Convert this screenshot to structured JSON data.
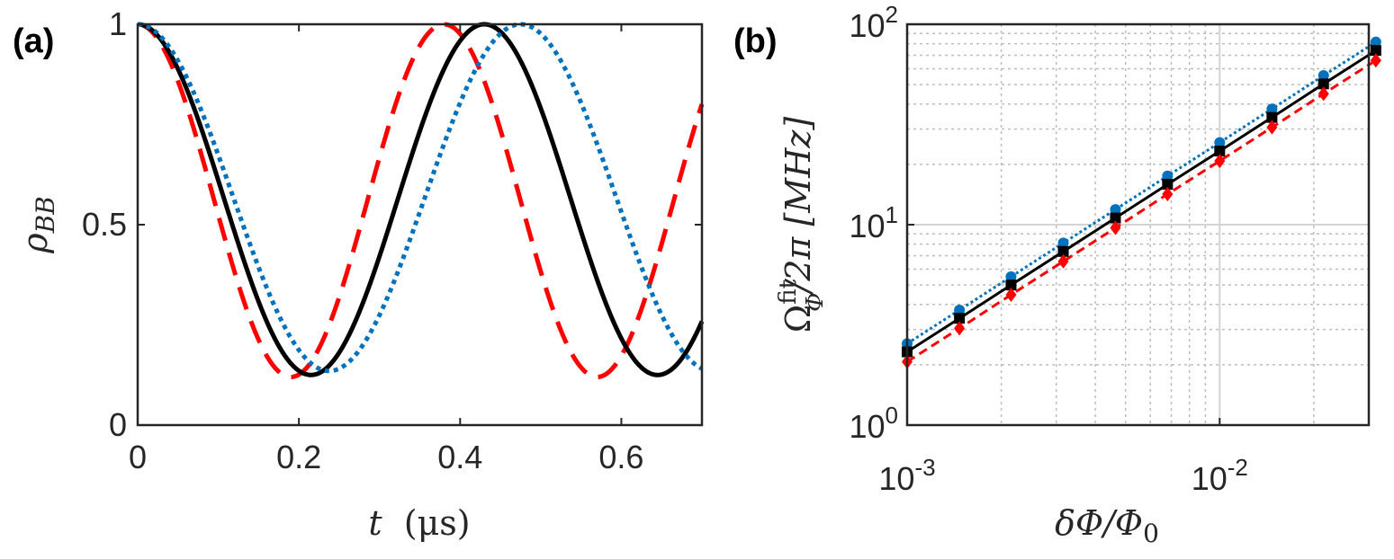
{
  "chart_data": [
    {
      "panel": "(a)",
      "type": "line",
      "title": "",
      "xlabel_var": "t",
      "xlabel_unit": "(μs)",
      "ylabel_var": "ρ",
      "ylabel_sub": "BB",
      "xlim": [
        0,
        0.7
      ],
      "ylim": [
        0,
        1
      ],
      "xticks": [
        0,
        0.2,
        0.4,
        0.6
      ],
      "xtick_labels": [
        "0",
        "0.2",
        "0.4",
        "0.6"
      ],
      "yticks": [
        0,
        0.5,
        1
      ],
      "ytick_labels": [
        "0",
        "0.5",
        "1"
      ],
      "grid": false,
      "series": [
        {
          "name": "dashed",
          "style": "dashed",
          "color": "#ff0000",
          "amplitude": 0.88,
          "period": 0.38,
          "phase_extra": 0.0
        },
        {
          "name": "solid",
          "style": "solid",
          "color": "#000000",
          "amplitude": 0.875,
          "period": 0.43,
          "phase_extra": 0.0
        },
        {
          "name": "dotted",
          "style": "dotted",
          "color": "#0072bd",
          "amplitude": 0.865,
          "period": 0.475,
          "phase_extra": 0.0
        }
      ]
    },
    {
      "panel": "(b)",
      "type": "line",
      "scale": "loglog",
      "xlabel": "δΦ/Φ",
      "xlabel_sub": "0",
      "ylabel": "Ω",
      "ylabel_sup": "fit",
      "ylabel_sub": "Φ",
      "ylabel_rest": "/2π  [MHz]",
      "xlim": [
        0.001,
        0.03
      ],
      "ylim": [
        1,
        100
      ],
      "xtick_labels": [
        {
          "base": "10",
          "exp": "-3",
          "value": 0.001
        },
        {
          "base": "10",
          "exp": "-2",
          "value": 0.01
        }
      ],
      "ytick_labels": [
        {
          "base": "10",
          "exp": "0",
          "value": 1
        },
        {
          "base": "10",
          "exp": "1",
          "value": 10
        },
        {
          "base": "10",
          "exp": "2",
          "value": 100
        }
      ],
      "grid": true,
      "x": [
        0.001,
        0.00147,
        0.00215,
        0.00316,
        0.00464,
        0.00681,
        0.01,
        0.0147,
        0.0215,
        0.0316
      ],
      "series": [
        {
          "name": "blue-circles",
          "style": "dotted",
          "color": "#0072bd",
          "marker": "circle",
          "values": [
            2.55,
            3.75,
            5.5,
            8.1,
            11.9,
            17.5,
            25.7,
            37.8,
            55.5,
            81.5
          ]
        },
        {
          "name": "black-squares",
          "style": "solid",
          "color": "#000000",
          "marker": "square",
          "values": [
            2.32,
            3.41,
            5.0,
            7.35,
            10.8,
            15.9,
            23.3,
            34.3,
            50.4,
            74.0
          ]
        },
        {
          "name": "red-diamonds",
          "style": "dashed",
          "color": "#ff0000",
          "marker": "diamond",
          "values": [
            2.07,
            3.04,
            4.47,
            6.56,
            9.64,
            14.2,
            20.8,
            30.6,
            45.0,
            66.0
          ]
        }
      ]
    }
  ]
}
